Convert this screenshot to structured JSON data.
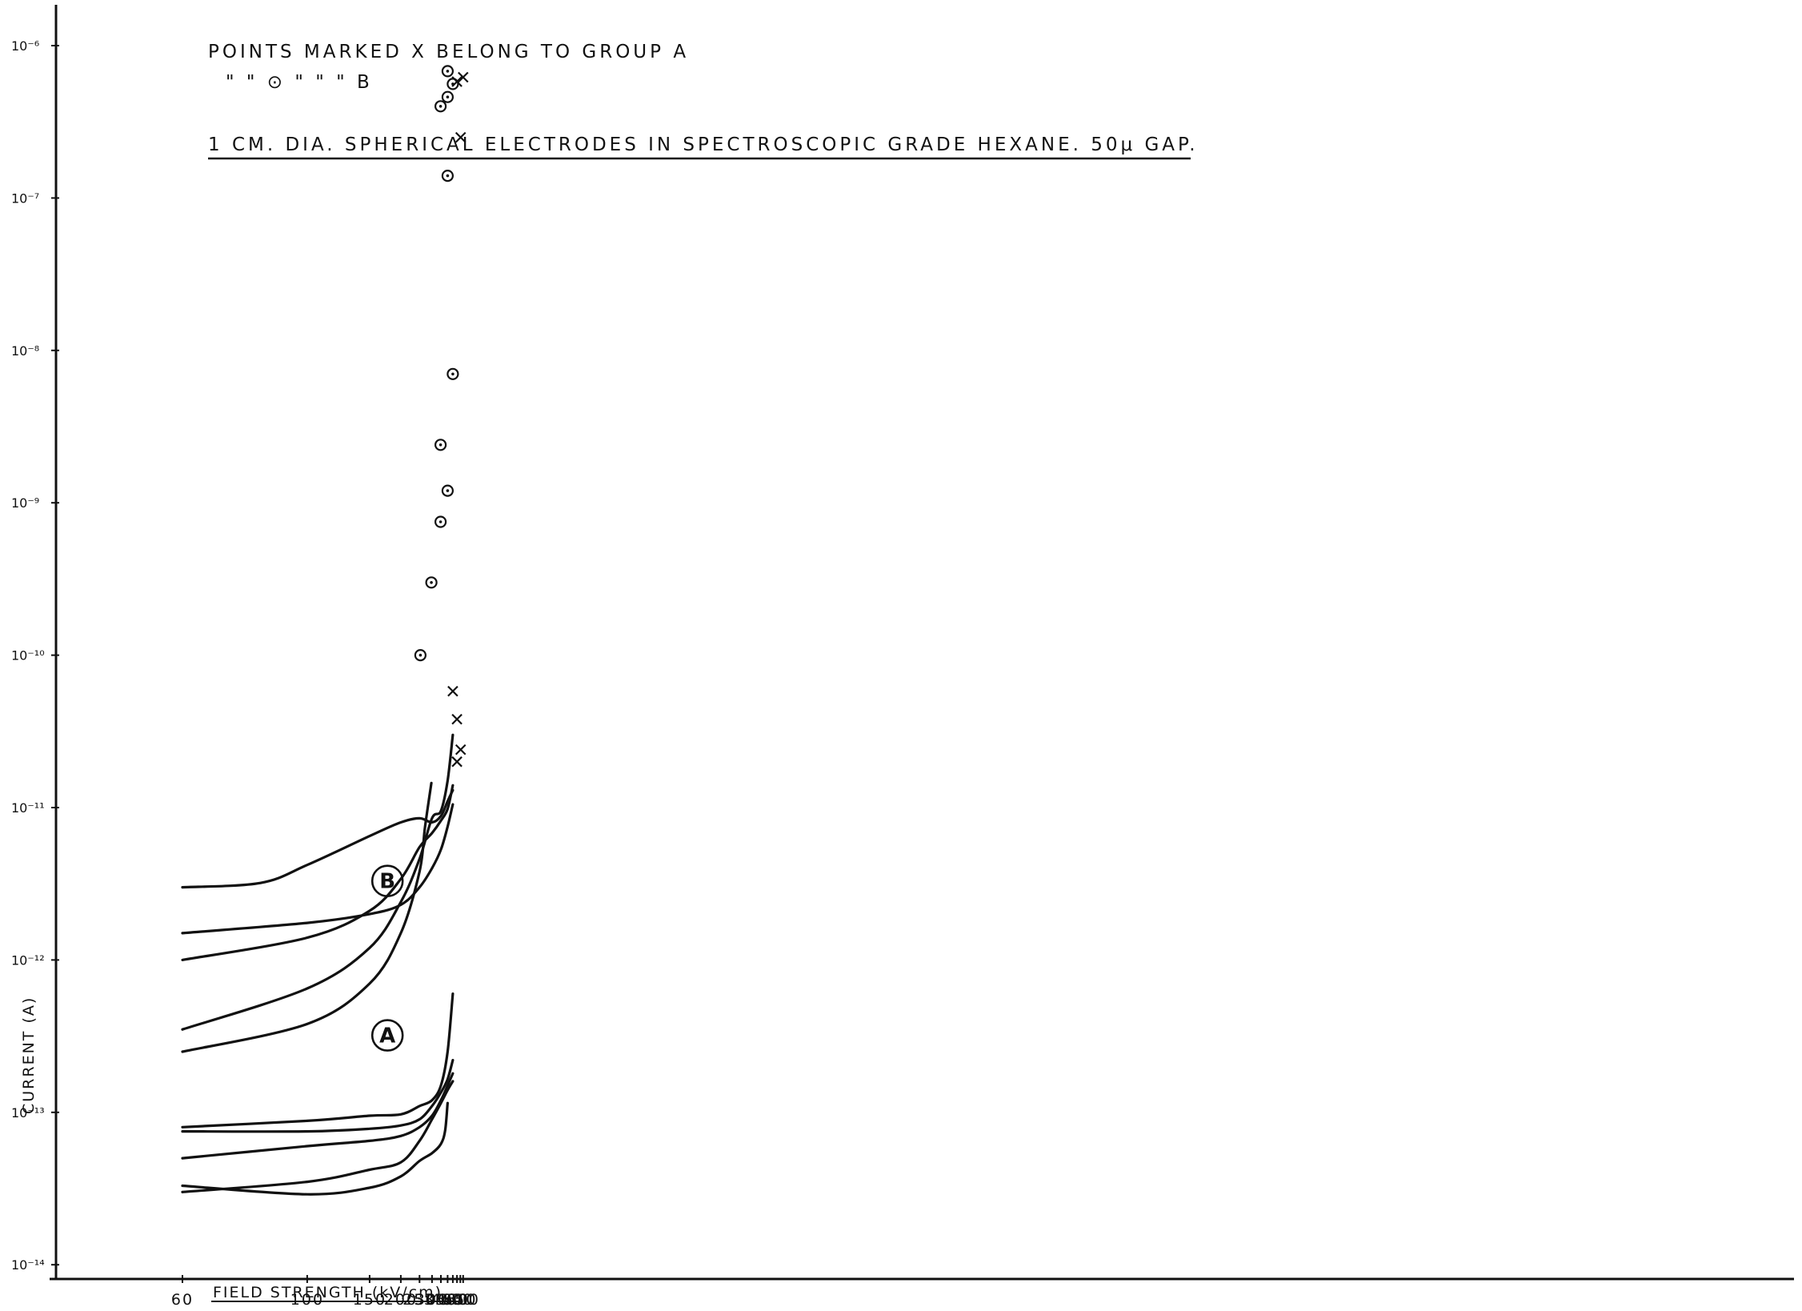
{
  "chart_data": {
    "type": "line",
    "title": "",
    "note_lines": [
      "POINTS MARKED X BELONG TO GROUP A",
      "\"   \"   ⊙   \"   \"   \"   B",
      "1 CM. DIA. SPHERICAL ELECTRODES IN SPECTROSCOPIC GRADE HEXANE. 50μ GAP."
    ],
    "xlabel": "FIELD STRENGTH (kV/cm).",
    "ylabel": "CURRENT (A)",
    "x_ticks": [
      "60",
      "100",
      "150",
      "200",
      "250",
      "300",
      "350",
      "400",
      "450",
      "500",
      "550",
      "600"
    ],
    "x_tick_values": [
      60,
      100,
      150,
      200,
      250,
      300,
      350,
      400,
      450,
      500,
      550,
      600
    ],
    "x_scale": "reciprocal",
    "y_scale": "log",
    "y_ticks": [
      "10⁻⁶",
      "10⁻⁷",
      "10⁻⁸",
      "10⁻⁹",
      "10⁻¹⁰",
      "10⁻¹¹",
      "10⁻¹²",
      "10⁻¹³",
      "10⁻¹⁴"
    ],
    "y_tick_exponents": [
      -6,
      -7,
      -8,
      -9,
      -10,
      -11,
      -12,
      -13,
      -14
    ],
    "ylim": [
      1e-14,
      1e-06
    ],
    "grid": false,
    "group_labels": [
      {
        "label": "B",
        "x": 175,
        "y": 3.3e-12
      },
      {
        "label": "A",
        "x": 175,
        "y": 3.2e-13
      }
    ],
    "series": [
      {
        "group": "B",
        "points": [
          [
            60,
            3e-12
          ],
          [
            80,
            3.2e-12
          ],
          [
            100,
            4.2e-12
          ],
          [
            150,
            6.5e-12
          ],
          [
            200,
            8e-12
          ],
          [
            250,
            8.5e-12
          ],
          [
            300,
            8e-12
          ],
          [
            350,
            8.8e-12
          ],
          [
            400,
            1.1e-11
          ],
          [
            450,
            1.3e-11
          ]
        ]
      },
      {
        "group": "B",
        "points": [
          [
            60,
            1.5e-12
          ],
          [
            100,
            1.75e-12
          ],
          [
            150,
            2e-12
          ],
          [
            200,
            2.3e-12
          ],
          [
            250,
            3e-12
          ],
          [
            300,
            4e-12
          ],
          [
            350,
            5.3e-12
          ],
          [
            400,
            7.5e-12
          ],
          [
            450,
            1.05e-11
          ]
        ]
      },
      {
        "group": "B",
        "points": [
          [
            60,
            1e-12
          ],
          [
            100,
            1.4e-12
          ],
          [
            150,
            2.1e-12
          ],
          [
            200,
            3.4e-12
          ],
          [
            250,
            5.5e-12
          ],
          [
            300,
            6.8e-12
          ],
          [
            350,
            8.2e-12
          ],
          [
            400,
            9.8e-12
          ],
          [
            450,
            1.4e-11
          ]
        ]
      },
      {
        "group": "B",
        "points": [
          [
            60,
            3.5e-13
          ],
          [
            100,
            6.5e-13
          ],
          [
            150,
            1.2e-12
          ],
          [
            200,
            2.4e-12
          ],
          [
            250,
            4.6e-12
          ],
          [
            300,
            8.5e-12
          ],
          [
            350,
            9.5e-12
          ],
          [
            400,
            1.5e-11
          ],
          [
            450,
            3e-11
          ]
        ]
      },
      {
        "group": "B",
        "points": [
          [
            60,
            2.5e-13
          ],
          [
            100,
            3.8e-13
          ],
          [
            150,
            7e-13
          ],
          [
            200,
            1.5e-12
          ],
          [
            250,
            3.8e-12
          ],
          [
            270,
            7.5e-12
          ],
          [
            297,
            1.45e-11
          ]
        ]
      },
      {
        "group": "A",
        "points": [
          [
            60,
            8e-14
          ],
          [
            100,
            8.8e-14
          ],
          [
            150,
            9.5e-14
          ],
          [
            200,
            9.7e-14
          ],
          [
            250,
            1.1e-13
          ],
          [
            300,
            1.2e-13
          ],
          [
            350,
            1.5e-13
          ],
          [
            400,
            2.5e-13
          ],
          [
            450,
            6e-13
          ]
        ]
      },
      {
        "group": "A",
        "points": [
          [
            60,
            7.5e-14
          ],
          [
            100,
            7.5e-14
          ],
          [
            150,
            7.8e-14
          ],
          [
            200,
            8.2e-14
          ],
          [
            250,
            9e-14
          ],
          [
            300,
            1.1e-13
          ],
          [
            350,
            1.35e-13
          ],
          [
            400,
            1.65e-13
          ],
          [
            450,
            2.2e-13
          ]
        ]
      },
      {
        "group": "A",
        "points": [
          [
            60,
            5e-14
          ],
          [
            100,
            6e-14
          ],
          [
            150,
            6.5e-14
          ],
          [
            200,
            7e-14
          ],
          [
            250,
            8e-14
          ],
          [
            300,
            9.5e-14
          ],
          [
            350,
            1.2e-13
          ],
          [
            400,
            1.5e-13
          ],
          [
            450,
            1.8e-13
          ]
        ]
      },
      {
        "group": "A",
        "points": [
          [
            60,
            3e-14
          ],
          [
            100,
            3.5e-14
          ],
          [
            150,
            4.2e-14
          ],
          [
            200,
            4.7e-14
          ],
          [
            250,
            6.5e-14
          ],
          [
            300,
            9e-14
          ],
          [
            350,
            1.15e-13
          ],
          [
            400,
            1.4e-13
          ],
          [
            450,
            1.6e-13
          ]
        ]
      },
      {
        "group": "A",
        "points": [
          [
            60,
            3.3e-14
          ],
          [
            100,
            2.9e-14
          ],
          [
            150,
            3.2e-14
          ],
          [
            200,
            3.8e-14
          ],
          [
            250,
            4.8e-14
          ],
          [
            300,
            5.4e-14
          ],
          [
            350,
            6.2e-14
          ],
          [
            380,
            7.6e-14
          ],
          [
            400,
            1.15e-13
          ]
        ]
      }
    ],
    "scatter_points": [
      {
        "group": "B",
        "marker": "circle",
        "x": 253,
        "y": 1e-10
      },
      {
        "group": "B",
        "marker": "circle",
        "x": 297,
        "y": 3e-10
      },
      {
        "group": "B",
        "marker": "circle",
        "x": 348,
        "y": 7.5e-10
      },
      {
        "group": "B",
        "marker": "circle",
        "x": 348,
        "y": 2.4e-09
      },
      {
        "group": "B",
        "marker": "circle",
        "x": 400,
        "y": 1.2e-09
      },
      {
        "group": "B",
        "marker": "circle",
        "x": 450,
        "y": 7e-09
      },
      {
        "group": "B",
        "marker": "circle",
        "x": 400,
        "y": 1.4e-07
      },
      {
        "group": "B",
        "marker": "circle",
        "x": 348,
        "y": 4e-07
      },
      {
        "group": "B",
        "marker": "circle",
        "x": 400,
        "y": 4.6e-07
      },
      {
        "group": "B",
        "marker": "circle",
        "x": 400,
        "y": 6.8e-07
      },
      {
        "group": "B",
        "marker": "circle",
        "x": 450,
        "y": 5.6e-07
      },
      {
        "group": "A",
        "marker": "x",
        "x": 450,
        "y": 5.8e-11
      },
      {
        "group": "A",
        "marker": "x",
        "x": 500,
        "y": 3.8e-11
      },
      {
        "group": "A",
        "marker": "x",
        "x": 500,
        "y": 2e-11
      },
      {
        "group": "A",
        "marker": "x",
        "x": 555,
        "y": 2.4e-11
      },
      {
        "group": "A",
        "marker": "x",
        "x": 500,
        "y": 5.8e-07
      },
      {
        "group": "A",
        "marker": "x",
        "x": 555,
        "y": 2.5e-07
      },
      {
        "group": "A",
        "marker": "x",
        "x": 600,
        "y": 6.2e-07
      }
    ]
  }
}
